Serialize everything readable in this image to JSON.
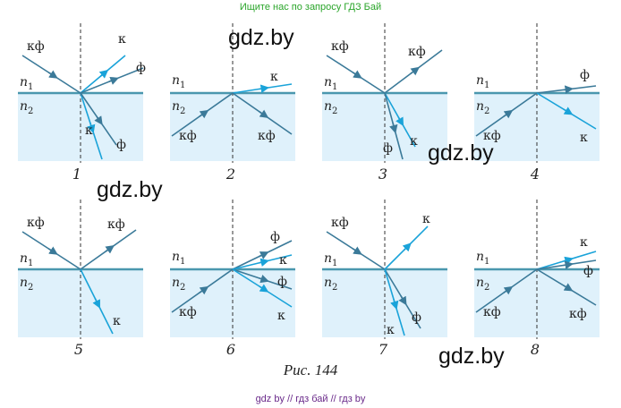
{
  "header": {
    "banner": "Ищите нас по запросу ГДЗ Бай"
  },
  "watermark": {
    "text": "gdz.by"
  },
  "labels": {
    "medium1": "n",
    "medium1_sub": "1",
    "medium2": "n",
    "medium2_sub": "2",
    "kf": "кф",
    "k": "к",
    "f": "ф"
  },
  "panels": [
    {
      "number": "1"
    },
    {
      "number": "2"
    },
    {
      "number": "3"
    },
    {
      "number": "4"
    },
    {
      "number": "5"
    },
    {
      "number": "6"
    },
    {
      "number": "7"
    },
    {
      "number": "8"
    }
  ],
  "caption": "Рис. 144",
  "footer": {
    "text": "gdz by  //  гдз бай  //  гдз by"
  },
  "colors": {
    "water": "#dff1fb",
    "interface": "#4a97ae",
    "ray_dark": "#3b7a99",
    "ray_cyan": "#1aa3d9",
    "text": "#222222"
  }
}
